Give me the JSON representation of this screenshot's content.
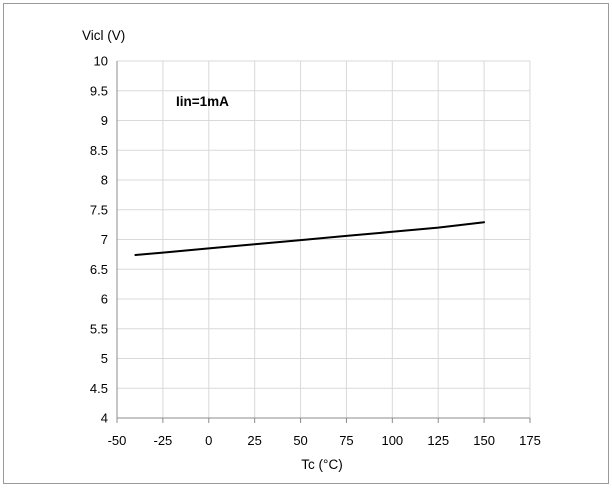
{
  "chart_data": {
    "type": "line",
    "title": "",
    "ylabel": "Vicl (V)",
    "xlabel": "Tc (°C)",
    "annotation": "Iin=1mA",
    "xlim": [
      -50,
      175
    ],
    "ylim": [
      4,
      10
    ],
    "xticks": [
      -50,
      -25,
      0,
      25,
      50,
      75,
      100,
      125,
      150,
      175
    ],
    "yticks": [
      4,
      4.5,
      5,
      5.5,
      6,
      6.5,
      7,
      7.5,
      8,
      8.5,
      9,
      9.5,
      10
    ],
    "grid": true,
    "legend": "none",
    "series": [
      {
        "x": [
          -40,
          -25,
          0,
          25,
          50,
          75,
          100,
          125,
          150
        ],
        "y": [
          6.74,
          6.78,
          6.85,
          6.92,
          6.99,
          7.06,
          7.13,
          7.2,
          7.29
        ]
      }
    ],
    "colors": {
      "line": "#000000",
      "grid": "#d9d9d9",
      "axis": "#8c8c8c",
      "frame": "#9a9a9a"
    }
  }
}
